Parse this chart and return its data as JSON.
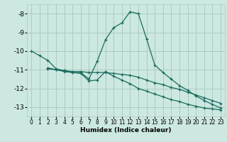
{
  "xlabel": "Humidex (Indice chaleur)",
  "background_color": "#cce8e0",
  "grid_color": "#aaccc4",
  "line_color": "#1a6b5e",
  "xlim": [
    -0.5,
    23.5
  ],
  "ylim": [
    -13.5,
    -7.5
  ],
  "yticks": [
    -13,
    -12,
    -11,
    -10,
    -9,
    -8
  ],
  "xticks": [
    0,
    1,
    2,
    3,
    4,
    5,
    6,
    7,
    8,
    9,
    10,
    11,
    12,
    13,
    14,
    15,
    16,
    17,
    18,
    19,
    20,
    21,
    22,
    23
  ],
  "series": [
    {
      "x": [
        0,
        1,
        2,
        3,
        4,
        5,
        6,
        7,
        8,
        9,
        10,
        11,
        12,
        13,
        14,
        15,
        16,
        17,
        18,
        19,
        20,
        21,
        22,
        23
      ],
      "y": [
        -10.0,
        -10.25,
        -10.5,
        -10.95,
        -11.05,
        -11.15,
        -11.15,
        -11.5,
        -10.55,
        -9.4,
        -8.75,
        -8.5,
        -7.9,
        -8.0,
        -9.35,
        -10.75,
        -11.15,
        -11.5,
        -11.85,
        -12.1,
        -12.4,
        -12.65,
        -12.85,
        -13.05
      ]
    },
    {
      "x": [
        2,
        3,
        4,
        5,
        6,
        7,
        8,
        9,
        10,
        11,
        12,
        13,
        14,
        15,
        16,
        17,
        18,
        19,
        20,
        21,
        22,
        23
      ],
      "y": [
        -10.9,
        -11.0,
        -11.05,
        -11.1,
        -11.1,
        -11.15,
        -11.15,
        -11.15,
        -11.2,
        -11.25,
        -11.3,
        -11.4,
        -11.55,
        -11.7,
        -11.8,
        -11.95,
        -12.05,
        -12.2,
        -12.35,
        -12.5,
        -12.65,
        -12.8
      ]
    },
    {
      "x": [
        2,
        3,
        4,
        5,
        6,
        7,
        8,
        9,
        10,
        11,
        12,
        13,
        14,
        15,
        16,
        17,
        18,
        19,
        20,
        21,
        22,
        23
      ],
      "y": [
        -10.95,
        -11.0,
        -11.1,
        -11.15,
        -11.2,
        -11.6,
        -11.55,
        -11.1,
        -11.35,
        -11.55,
        -11.75,
        -12.0,
        -12.15,
        -12.3,
        -12.45,
        -12.6,
        -12.7,
        -12.85,
        -12.95,
        -13.05,
        -13.1,
        -13.15
      ]
    }
  ]
}
